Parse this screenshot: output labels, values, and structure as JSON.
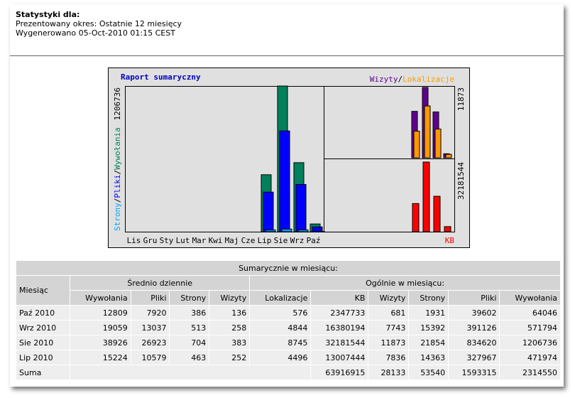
{
  "header": {
    "title": "Statystyki dla:",
    "period": "Prezentowany okres: Ostatnie 12 miesięcy",
    "generated": "Wygenerowano 05-Oct-2010 01:15 CEST"
  },
  "chart": {
    "title": "Raport sumaryczny",
    "months": [
      "Lis",
      "Gru",
      "Sty",
      "Lut",
      "Mar",
      "Kwi",
      "Maj",
      "Cze",
      "Lip",
      "Sie",
      "Wrz",
      "Paź"
    ],
    "separator": "/",
    "left_legend": [
      {
        "name": "Strony",
        "color": "#00a0ff"
      },
      {
        "name": "Pliki",
        "color": "#0000ff"
      },
      {
        "name": "Wywołania",
        "color": "#00805c"
      }
    ],
    "left_max": 1206736,
    "top_legend": [
      {
        "name": "Wizyty",
        "color": "#600090"
      },
      {
        "name": "Lokalizacje",
        "color": "#ff9900"
      }
    ],
    "top_max": 11873,
    "bottom_legend": {
      "name": "KB",
      "color": "#ff0000"
    },
    "bottom_max": 32181544
  },
  "table": {
    "caption": "Sumarycznie w miesiącu:",
    "month_header": "Miesiąc",
    "group_headers": [
      "Średnio dziennie",
      "Ogólnie w miesiącu:"
    ],
    "columns": [
      "Wywołania",
      "Pliki",
      "Strony",
      "Wizyty",
      "Lokalizacje",
      "KB",
      "Wizyty",
      "Strony",
      "Pliki",
      "Wywołania"
    ],
    "rows": [
      {
        "cells": [
          "Paź 2010",
          12809,
          7920,
          386,
          136,
          576,
          2347733,
          681,
          1931,
          39602,
          64046
        ]
      },
      {
        "cells": [
          "Wrz 2010",
          19059,
          13037,
          513,
          258,
          4844,
          16380194,
          7743,
          15392,
          391126,
          571794
        ]
      },
      {
        "cells": [
          "Sie 2010",
          38926,
          26923,
          704,
          383,
          8745,
          32181544,
          11873,
          21854,
          834620,
          1206736
        ]
      },
      {
        "cells": [
          "Lip 2010",
          15224,
          10579,
          463,
          252,
          4496,
          13007444,
          7836,
          14363,
          327967,
          471974
        ]
      }
    ],
    "total": {
      "label": "Suma",
      "cells": [
        63916915,
        28133,
        53540,
        1593315,
        2314550
      ]
    }
  }
}
